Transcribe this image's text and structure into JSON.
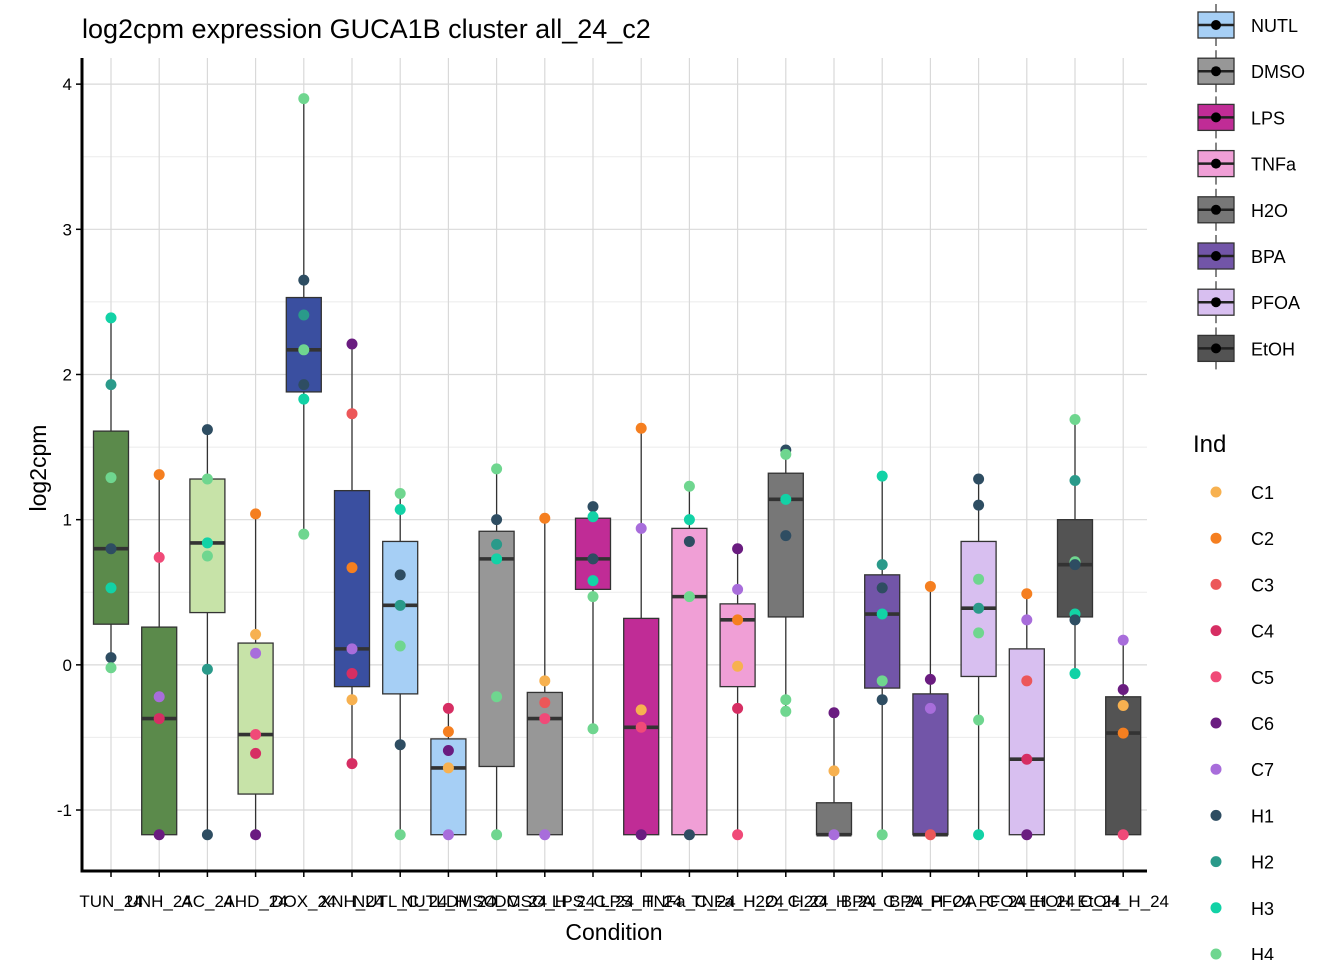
{
  "chart_data": {
    "type": "box",
    "title": "log2cpm expression GUCA1B cluster all_24_c2",
    "xlabel": "Condition",
    "ylabel": "log2cpm",
    "ylim": [
      -1.42,
      4.18
    ],
    "yticks": [
      -1,
      0,
      1,
      2,
      3,
      4
    ],
    "grid": true,
    "legend_fill": {
      "title": "",
      "entries": [
        {
          "label": "NUTL",
          "color": "#a6cff5"
        },
        {
          "label": "DMSO",
          "color": "#979797"
        },
        {
          "label": "LPS",
          "color": "#c02c96"
        },
        {
          "label": "TNFa",
          "color": "#f09fd6"
        },
        {
          "label": "H2O",
          "color": "#777777"
        },
        {
          "label": "BPA",
          "color": "#7255a8"
        },
        {
          "label": "PFOA",
          "color": "#d8bff0"
        },
        {
          "label": "EtOH",
          "color": "#535353"
        }
      ]
    },
    "legend_ind": {
      "title": "Ind",
      "entries": [
        {
          "label": "C1",
          "color": "#f7b150"
        },
        {
          "label": "C2",
          "color": "#f57f20"
        },
        {
          "label": "C3",
          "color": "#ec5759"
        },
        {
          "label": "C4",
          "color": "#d62e63"
        },
        {
          "label": "C5",
          "color": "#f04a78"
        },
        {
          "label": "C6",
          "color": "#6a1c80"
        },
        {
          "label": "C7",
          "color": "#a86ddb"
        },
        {
          "label": "H1",
          "color": "#2e4d62"
        },
        {
          "label": "H2",
          "color": "#2a9a8a"
        },
        {
          "label": "H3",
          "color": "#12d2a6"
        },
        {
          "label": "H4",
          "color": "#6fd68f"
        }
      ]
    },
    "categories": [
      "TUN_24",
      "TUNH_24",
      "TAC_24",
      "TAHD_24",
      "TDOX_24",
      "TDXNH_24",
      "NUTL_C_24",
      "NUTL_H_24",
      "DMSO_C_24",
      "DMSO_H_24",
      "LPS_C_24",
      "LPS_H_24",
      "TNFa_C_24",
      "TNFa_H_24",
      "H2O_C_24",
      "H2O_H_24",
      "BPA_C_24",
      "BPA_H_24",
      "PFOA_C_24",
      "PFOA_H_24",
      "EtOH_C_24",
      "EtOH_H_24"
    ],
    "tick_labels": [
      "TUN_24",
      "UNH_24",
      "AC_24",
      "AHD_24",
      "DOX_24",
      "XNH_24",
      "NUTL_C_24",
      "NUTL_H_24",
      "DMSO_C_24",
      "DMSO_H_24",
      "LPS_C_24",
      "LPS_H_24",
      "TNFa_C_24",
      "TNFa_H_24",
      "H2O_C_24",
      "H2O_H_24",
      "BPA_C_24",
      "BPA_H_24",
      "PFOA_C_24",
      "PFOA_H_24",
      "EtOH_C_24",
      "EtOH_H_24"
    ],
    "boxes": [
      {
        "fill": "#5b8a4b",
        "min": -0.02,
        "q1": 0.28,
        "median": 0.8,
        "q3": 1.61,
        "max": 2.39
      },
      {
        "fill": "#5b8a4b",
        "min": -1.17,
        "q1": -1.17,
        "median": -0.37,
        "q3": 0.26,
        "max": 1.31
      },
      {
        "fill": "#c7e3a8",
        "min": -1.17,
        "q1": 0.36,
        "median": 0.84,
        "q3": 1.28,
        "max": 1.62
      },
      {
        "fill": "#c7e3a8",
        "min": -1.17,
        "q1": -0.89,
        "median": -0.48,
        "q3": 0.15,
        "max": 1.04
      },
      {
        "fill": "#3a4fa0",
        "min": 0.9,
        "q1": 1.88,
        "median": 2.17,
        "q3": 2.53,
        "max": 3.9
      },
      {
        "fill": "#3a4fa0",
        "min": -0.68,
        "q1": -0.15,
        "median": 0.11,
        "q3": 1.2,
        "max": 2.21
      },
      {
        "fill": "#a6cff5",
        "min": -1.17,
        "q1": -0.2,
        "median": 0.41,
        "q3": 0.85,
        "max": 1.18
      },
      {
        "fill": "#a6cff5",
        "min": -1.17,
        "q1": -1.17,
        "median": -0.71,
        "q3": -0.51,
        "max": -0.3
      },
      {
        "fill": "#979797",
        "min": -1.17,
        "q1": -0.7,
        "median": 0.73,
        "q3": 0.92,
        "max": 1.35
      },
      {
        "fill": "#979797",
        "min": -1.17,
        "q1": -1.17,
        "median": -0.37,
        "q3": -0.19,
        "max": 1.01
      },
      {
        "fill": "#c02c96",
        "min": -0.44,
        "q1": 0.52,
        "median": 0.73,
        "q3": 1.01,
        "max": 1.09
      },
      {
        "fill": "#c02c96",
        "min": -1.17,
        "q1": -1.17,
        "median": -0.43,
        "q3": 0.32,
        "max": 1.63
      },
      {
        "fill": "#f09fd6",
        "min": -1.17,
        "q1": -1.17,
        "median": 0.47,
        "q3": 0.94,
        "max": 1.23
      },
      {
        "fill": "#f09fd6",
        "min": -1.17,
        "q1": -0.15,
        "median": 0.31,
        "q3": 0.42,
        "max": 0.8
      },
      {
        "fill": "#777777",
        "min": -0.32,
        "q1": 0.33,
        "median": 1.14,
        "q3": 1.32,
        "max": 1.48
      },
      {
        "fill": "#777777",
        "min": -1.17,
        "q1": -1.17,
        "median": -1.17,
        "q3": -0.95,
        "max": -0.33
      },
      {
        "fill": "#7255a8",
        "min": -1.17,
        "q1": -0.16,
        "median": 0.35,
        "q3": 0.62,
        "max": 1.3
      },
      {
        "fill": "#7255a8",
        "min": -1.17,
        "q1": -1.17,
        "median": -1.17,
        "q3": -0.2,
        "max": 0.54
      },
      {
        "fill": "#d8bff0",
        "min": -1.17,
        "q1": -0.08,
        "median": 0.39,
        "q3": 0.85,
        "max": 1.28
      },
      {
        "fill": "#d8bff0",
        "min": -1.17,
        "q1": -1.17,
        "median": -0.65,
        "q3": 0.11,
        "max": 0.49
      },
      {
        "fill": "#535353",
        "min": -0.06,
        "q1": 0.33,
        "median": 0.69,
        "q3": 1.0,
        "max": 1.69
      },
      {
        "fill": "#535353",
        "min": -1.17,
        "q1": -1.17,
        "median": -0.47,
        "q3": -0.22,
        "max": 0.17
      }
    ],
    "points": [
      [
        [
          "H3",
          2.39
        ],
        [
          "H2",
          1.93
        ],
        [
          "H4",
          1.29
        ],
        [
          "H1",
          0.8
        ],
        [
          "H3",
          0.53
        ],
        [
          "H1",
          0.05
        ],
        [
          "H4",
          -0.02
        ]
      ],
      [
        [
          "C2",
          1.31
        ],
        [
          "C5",
          0.74
        ],
        [
          "C7",
          -0.22
        ],
        [
          "C4",
          -0.37
        ],
        [
          "C6",
          -1.17
        ]
      ],
      [
        [
          "H1",
          1.62
        ],
        [
          "H4",
          1.28
        ],
        [
          "H3",
          0.84
        ],
        [
          "H4",
          0.75
        ],
        [
          "H2",
          -0.03
        ],
        [
          "H1",
          -1.17
        ]
      ],
      [
        [
          "C2",
          1.04
        ],
        [
          "C1",
          0.21
        ],
        [
          "C7",
          0.08
        ],
        [
          "C5",
          -0.48
        ],
        [
          "C4",
          -0.61
        ],
        [
          "C6",
          -1.17
        ]
      ],
      [
        [
          "H4",
          3.9
        ],
        [
          "H1",
          2.65
        ],
        [
          "H2",
          2.41
        ],
        [
          "H4",
          2.17
        ],
        [
          "H1",
          1.93
        ],
        [
          "H3",
          1.83
        ],
        [
          "H4",
          0.9
        ]
      ],
      [
        [
          "C6",
          2.21
        ],
        [
          "C3",
          1.73
        ],
        [
          "C2",
          0.67
        ],
        [
          "C7",
          0.11
        ],
        [
          "C4",
          -0.06
        ],
        [
          "C1",
          -0.24
        ],
        [
          "C4",
          -0.68
        ]
      ],
      [
        [
          "H4",
          1.18
        ],
        [
          "H3",
          1.07
        ],
        [
          "H1",
          0.62
        ],
        [
          "H2",
          0.41
        ],
        [
          "H4",
          0.13
        ],
        [
          "H1",
          -0.55
        ],
        [
          "H4",
          -1.17
        ]
      ],
      [
        [
          "C4",
          -0.3
        ],
        [
          "C2",
          -0.46
        ],
        [
          "C6",
          -0.59
        ],
        [
          "C1",
          -0.71
        ],
        [
          "C7",
          -1.17
        ]
      ],
      [
        [
          "H4",
          1.35
        ],
        [
          "H1",
          1.0
        ],
        [
          "H2",
          0.83
        ],
        [
          "H3",
          0.73
        ],
        [
          "H4",
          -0.22
        ],
        [
          "H4",
          -1.17
        ]
      ],
      [
        [
          "C2",
          1.01
        ],
        [
          "C1",
          -0.11
        ],
        [
          "C3",
          -0.26
        ],
        [
          "C5",
          -0.37
        ],
        [
          "C7",
          -1.17
        ]
      ],
      [
        [
          "H1",
          1.09
        ],
        [
          "H3",
          1.02
        ],
        [
          "H1",
          0.73
        ],
        [
          "H3",
          0.58
        ],
        [
          "H4",
          0.47
        ],
        [
          "H4",
          -0.44
        ]
      ],
      [
        [
          "C2",
          1.63
        ],
        [
          "C7",
          0.94
        ],
        [
          "C1",
          -0.31
        ],
        [
          "C5",
          -0.43
        ],
        [
          "C6",
          -1.17
        ]
      ],
      [
        [
          "H4",
          1.23
        ],
        [
          "H3",
          1.0
        ],
        [
          "H1",
          0.85
        ],
        [
          "H4",
          0.47
        ],
        [
          "H1",
          -1.17
        ]
      ],
      [
        [
          "C6",
          0.8
        ],
        [
          "C7",
          0.52
        ],
        [
          "C2",
          0.31
        ],
        [
          "C1",
          -0.01
        ],
        [
          "C4",
          -0.3
        ],
        [
          "C5",
          -1.17
        ]
      ],
      [
        [
          "H1",
          1.48
        ],
        [
          "H4",
          1.45
        ],
        [
          "H3",
          1.14
        ],
        [
          "H1",
          0.89
        ],
        [
          "H4",
          -0.24
        ],
        [
          "H4",
          -0.32
        ]
      ],
      [
        [
          "C6",
          -0.33
        ],
        [
          "C1",
          -0.73
        ],
        [
          "C7",
          -1.17
        ]
      ],
      [
        [
          "H3",
          1.3
        ],
        [
          "H2",
          0.69
        ],
        [
          "H1",
          0.53
        ],
        [
          "H3",
          0.35
        ],
        [
          "H4",
          -0.11
        ],
        [
          "H1",
          -0.24
        ],
        [
          "H4",
          -1.17
        ]
      ],
      [
        [
          "C2",
          0.54
        ],
        [
          "C6",
          -0.1
        ],
        [
          "C7",
          -0.3
        ],
        [
          "C3",
          -1.17
        ]
      ],
      [
        [
          "H1",
          1.28
        ],
        [
          "H1",
          1.1
        ],
        [
          "H4",
          0.59
        ],
        [
          "H2",
          0.39
        ],
        [
          "H4",
          0.22
        ],
        [
          "H4",
          -0.38
        ],
        [
          "H3",
          -1.17
        ]
      ],
      [
        [
          "C2",
          0.49
        ],
        [
          "C7",
          0.31
        ],
        [
          "C3",
          -0.11
        ],
        [
          "C4",
          -0.65
        ],
        [
          "C6",
          -1.17
        ]
      ],
      [
        [
          "H4",
          1.69
        ],
        [
          "H2",
          1.27
        ],
        [
          "H4",
          0.71
        ],
        [
          "H1",
          0.69
        ],
        [
          "H3",
          0.35
        ],
        [
          "H1",
          0.31
        ],
        [
          "H3",
          -0.06
        ]
      ],
      [
        [
          "C7",
          0.17
        ],
        [
          "C6",
          -0.17
        ],
        [
          "C1",
          -0.28
        ],
        [
          "C2",
          -0.47
        ],
        [
          "C5",
          -1.17
        ]
      ]
    ]
  }
}
